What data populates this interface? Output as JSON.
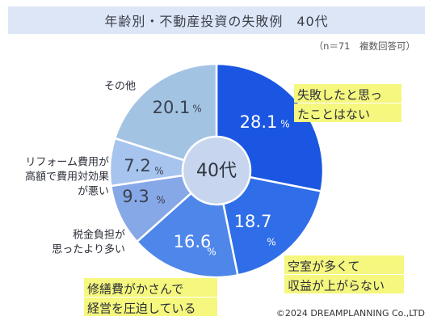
{
  "header": {
    "title": "年齢別・不動産投資の失敗例　40代",
    "note": "（n＝71　複数回答可）"
  },
  "footer": {
    "credit": "©2024 DREAMPLANNING Co.,LTD"
  },
  "chart_data": {
    "type": "pie",
    "center_label": "40代",
    "unit": "%",
    "slices": [
      {
        "label": [
          "失敗したと思っ",
          "たことはない"
        ],
        "value": 28.1,
        "value_text": "28.1",
        "color": "#1a56e2",
        "highlight": true
      },
      {
        "label": [
          "空室が多くて",
          "収益が上がらない"
        ],
        "value": 18.7,
        "value_text": "18.7",
        "color": "#2f6ee8",
        "highlight": true
      },
      {
        "label": [
          "修繕費がかさんで",
          "経営を圧迫している"
        ],
        "value": 16.6,
        "value_text": "16.6",
        "color": "#4e86ea",
        "highlight": true
      },
      {
        "label": [
          "税金負担が",
          "思ったより多い"
        ],
        "value": 9.3,
        "value_text": "9.3",
        "color": "#87a8e6",
        "highlight": false
      },
      {
        "label": [
          "リフォーム費用が",
          "高額で費用対効果",
          "が悪い"
        ],
        "value": 7.2,
        "value_text": "7.2",
        "color": "#a7c4ef",
        "highlight": false
      },
      {
        "label": [
          "その他"
        ],
        "value": 20.1,
        "value_text": "20.1",
        "color": "#a3c3e3",
        "highlight": false
      }
    ]
  }
}
